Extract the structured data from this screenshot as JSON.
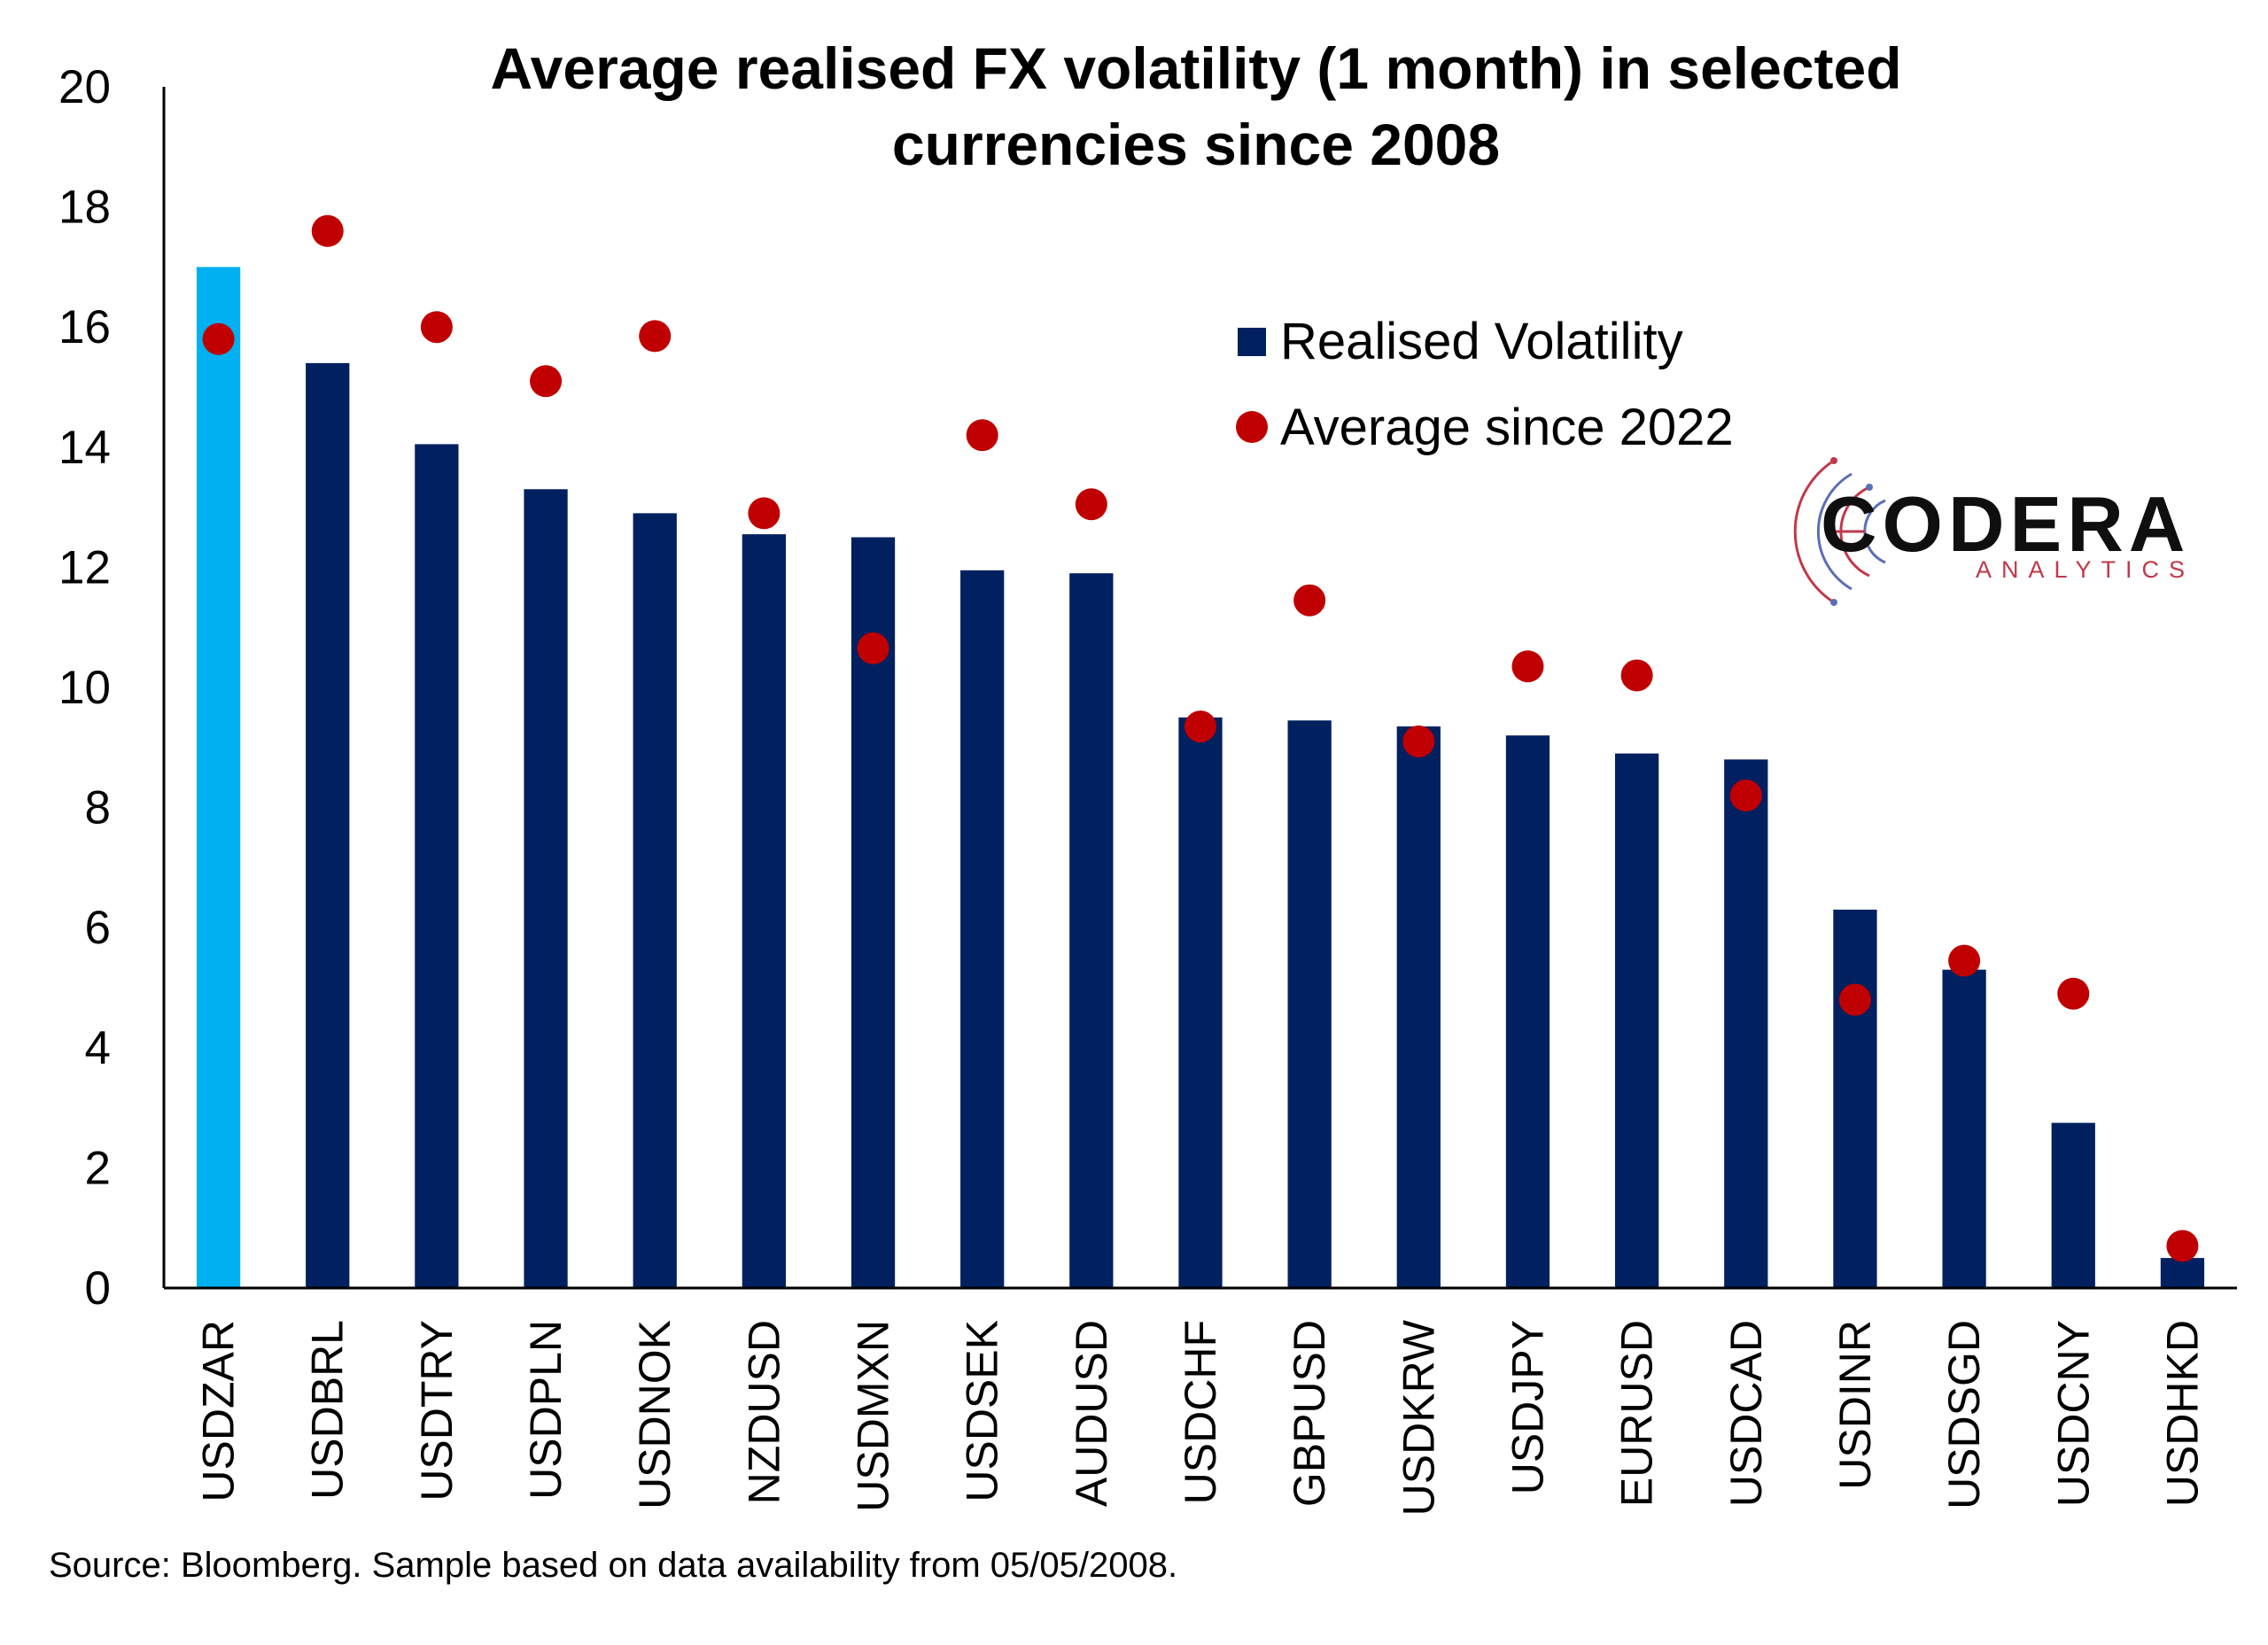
{
  "chart_data": {
    "type": "bar",
    "title": [
      "Average realised FX volatility (1 month) in selected",
      "currencies since 2008"
    ],
    "categories": [
      "USDZAR",
      "USDBRL",
      "USDTRY",
      "USDPLN",
      "USDNOK",
      "NZDUSD",
      "USDMXN",
      "USDSEK",
      "AUDUSD",
      "USDCHF",
      "GBPUSD",
      "USDKRW",
      "USDJPY",
      "EURUSD",
      "USDCAD",
      "USDINR",
      "USDSGD",
      "USDCNY",
      "USDHKD"
    ],
    "series": [
      {
        "name": "Realised Volatility",
        "type": "bar",
        "color": "#002060",
        "highlight": {
          "category": "USDZAR",
          "color": "#00B0F0"
        },
        "values": [
          17.0,
          15.4,
          14.05,
          13.3,
          12.9,
          12.55,
          12.5,
          11.95,
          11.9,
          9.5,
          9.45,
          9.35,
          9.2,
          8.9,
          8.8,
          6.3,
          5.3,
          2.75,
          0.5
        ]
      },
      {
        "name": "Average since 2022",
        "type": "scatter",
        "color": "#C00000",
        "values": [
          15.8,
          17.6,
          16.0,
          15.1,
          15.85,
          12.9,
          10.65,
          14.2,
          13.05,
          9.35,
          11.45,
          9.1,
          10.35,
          10.2,
          8.2,
          4.8,
          5.45,
          4.9,
          0.7
        ]
      }
    ],
    "ylim": [
      0,
      20
    ],
    "yticks": [
      "0",
      "2",
      "4",
      "6",
      "8",
      "10",
      "12",
      "14",
      "16",
      "18",
      "20"
    ],
    "grid": false,
    "legend": "top-right"
  },
  "source_note": "Source: Bloomberg. Sample based on data availability from 05/05/2008.",
  "logo": {
    "name": "CODERA",
    "tagline": "ANALYTICS"
  }
}
